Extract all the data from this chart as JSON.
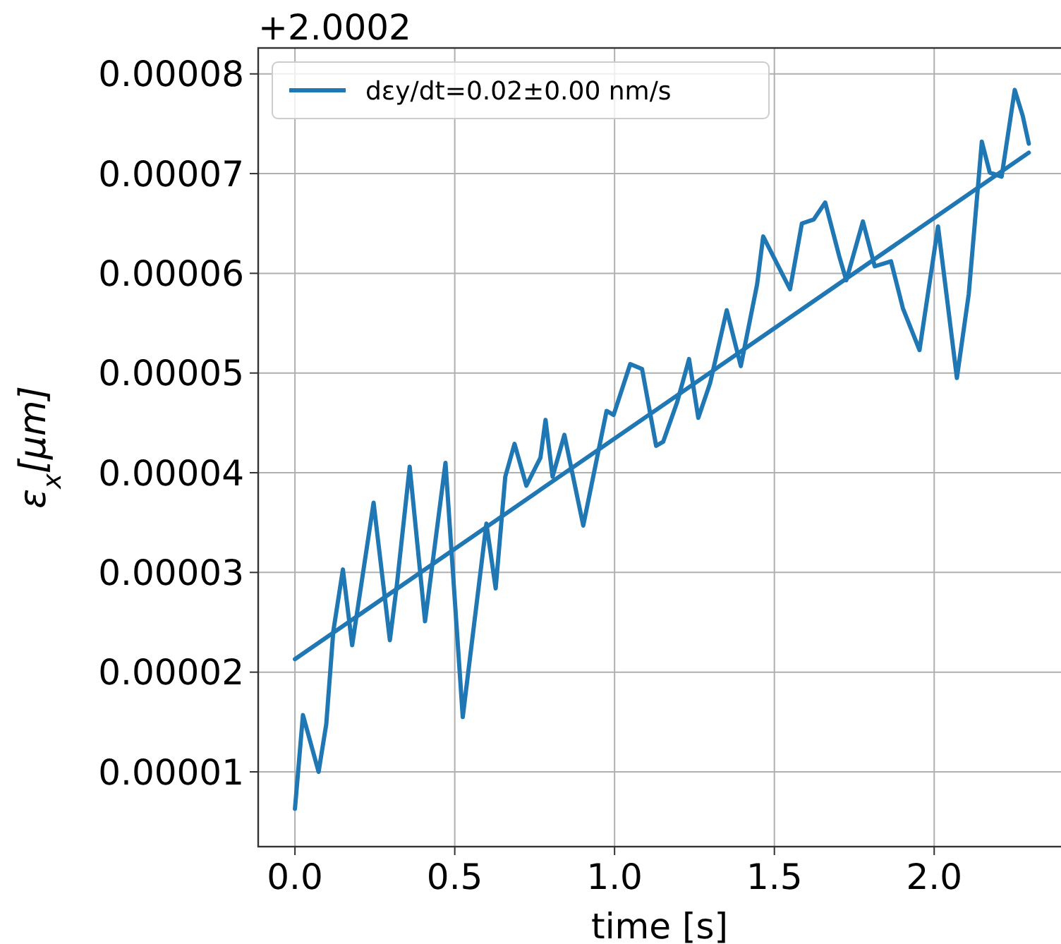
{
  "chart_data": {
    "type": "line",
    "xlabel": "time [s]",
    "ylabel": "ε$_{x}$[μm]",
    "annotations": [
      "+2.0002"
    ],
    "xlim": [
      -0.115,
      2.41
    ],
    "ylim": [
      2.5e-06,
      8.26e-05
    ],
    "xticks": [
      {
        "value": 0,
        "label": "0.0"
      },
      {
        "value": 0.5,
        "label": "0.5"
      },
      {
        "value": 1,
        "label": "1.0"
      },
      {
        "value": 1.5,
        "label": "1.5"
      },
      {
        "value": 2,
        "label": "2.0"
      }
    ],
    "yticks": [
      {
        "value": 1e-05,
        "label": "0.00001"
      },
      {
        "value": 2e-05,
        "label": "0.00002"
      },
      {
        "value": 3e-05,
        "label": "0.00003"
      },
      {
        "value": 4e-05,
        "label": "0.00004"
      },
      {
        "value": 5e-05,
        "label": "0.00005"
      },
      {
        "value": 6e-05,
        "label": "0.00006"
      },
      {
        "value": 7e-05,
        "label": "0.00007"
      },
      {
        "value": 8e-05,
        "label": "0.00008"
      }
    ],
    "grid": true,
    "legend": "top left",
    "line_style": "solid",
    "marker": "none",
    "series": [
      {
        "color": "#1f77b4",
        "x": [
          0,
          0.025,
          0.074,
          0.098,
          0.12,
          0.15,
          0.179,
          0.246,
          0.297,
          0.319,
          0.359,
          0.407,
          0.471,
          0.525,
          0.599,
          0.628,
          0.658,
          0.687,
          0.724,
          0.768,
          0.784,
          0.806,
          0.843,
          0.902,
          0.975,
          0.997,
          1.049,
          1.086,
          1.13,
          1.152,
          1.196,
          1.233,
          1.262,
          1.299,
          1.351,
          1.395,
          1.446,
          1.465,
          1.549,
          1.586,
          1.623,
          1.659,
          1.703,
          1.725,
          1.777,
          1.814,
          1.865,
          1.902,
          1.954,
          1.976,
          2.012,
          2.071,
          2.108,
          2.149,
          2.174,
          2.211,
          2.252,
          2.277,
          2.296
        ],
        "values": [
          6.3e-06,
          1.57e-05,
          1e-05,
          1.48e-05,
          2.41e-05,
          3.03e-05,
          2.27e-05,
          3.7e-05,
          2.32e-05,
          2.88e-05,
          4.06e-05,
          2.51e-05,
          4.1e-05,
          1.55e-05,
          3.49e-05,
          2.84e-05,
          3.96e-05,
          4.29e-05,
          3.87e-05,
          4.15e-05,
          4.53e-05,
          3.96e-05,
          4.38e-05,
          3.47e-05,
          4.62e-05,
          4.58e-05,
          5.09e-05,
          5.04e-05,
          4.27e-05,
          4.31e-05,
          4.71e-05,
          5.14e-05,
          4.55e-05,
          4.9e-05,
          5.63e-05,
          5.07e-05,
          5.89e-05,
          6.37e-05,
          5.84e-05,
          6.5e-05,
          6.54e-05,
          6.71e-05,
          6.17e-05,
          5.93e-05,
          6.52e-05,
          6.07e-05,
          6.12e-05,
          5.65e-05,
          5.23e-05,
          5.7e-05,
          6.47e-05,
          4.95e-05,
          5.79e-05,
          7.32e-05,
          7.01e-05,
          6.97e-05,
          7.84e-05,
          7.58e-05,
          7.3e-05
        ]
      },
      {
        "name": "dεy/dt=0.02±0.00 nm/s",
        "color": "#1f77b4",
        "x": [
          0,
          2.296
        ],
        "values": [
          2.13e-05,
          7.21e-05
        ]
      }
    ]
  }
}
